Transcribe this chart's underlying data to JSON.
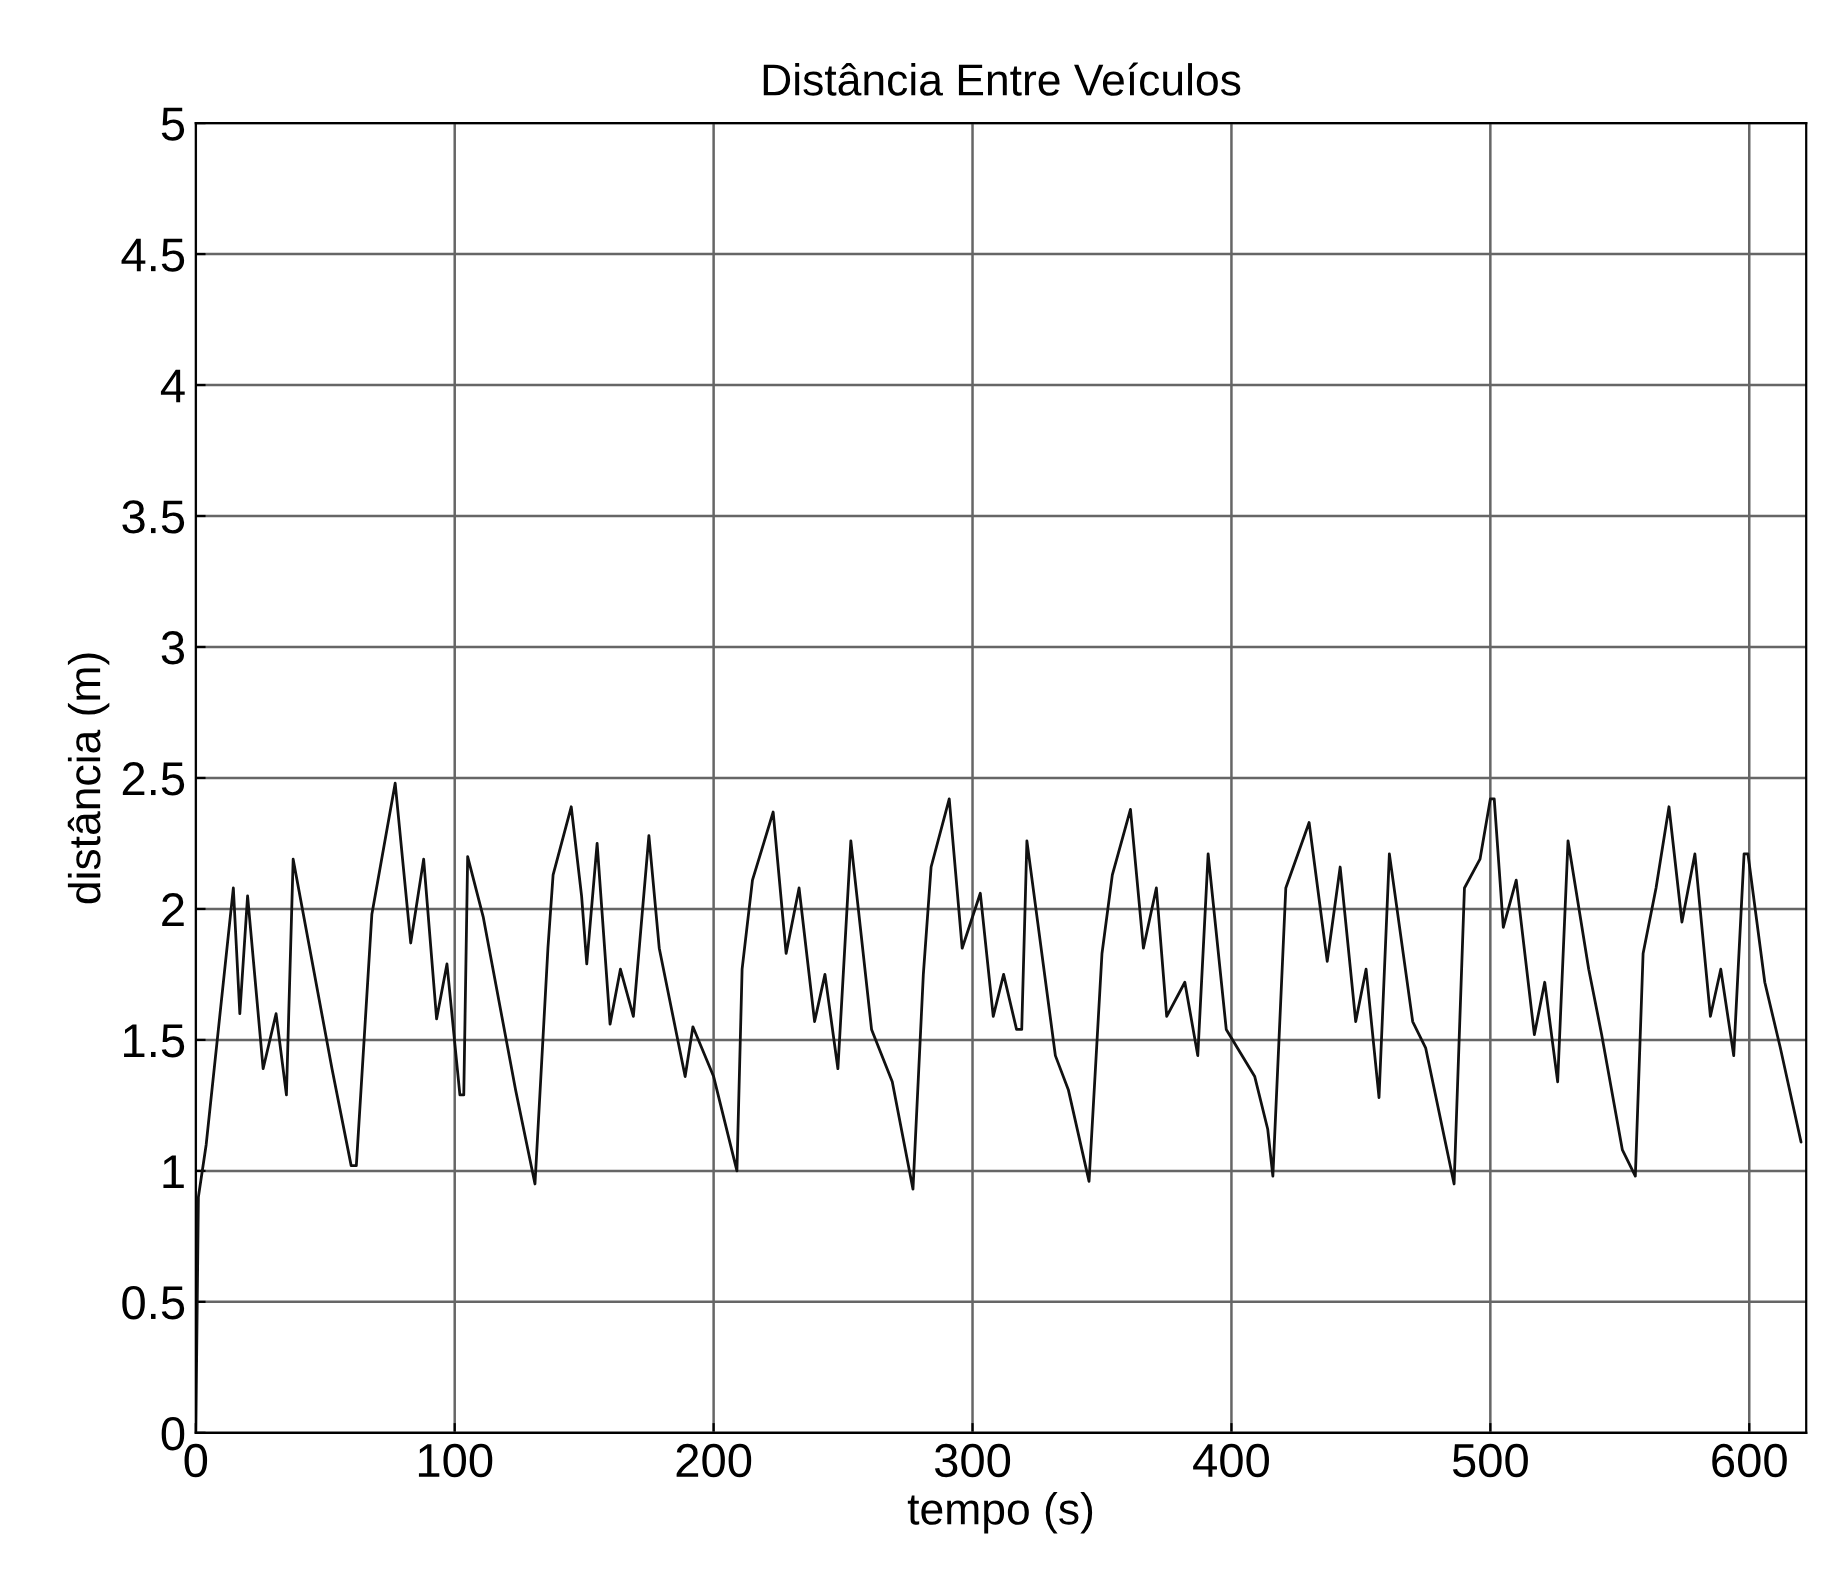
{
  "chart_data": {
    "type": "line",
    "title": "Distância Entre Veículos",
    "xlabel": "tempo (s)",
    "ylabel": "distância (m)",
    "xlim": [
      0,
      622
    ],
    "ylim": [
      0,
      5
    ],
    "xticks": [
      0,
      100,
      200,
      300,
      400,
      500,
      600
    ],
    "yticks": [
      0,
      0.5,
      1,
      1.5,
      2,
      2.5,
      3,
      3.5,
      4,
      4.5,
      5
    ],
    "grid": true,
    "series": [
      {
        "color": "#111111",
        "x": [
          0,
          1,
          4,
          14.5,
          17,
          20,
          26,
          31,
          35,
          37.6,
          52.6,
          60,
          62,
          68,
          77,
          83,
          88,
          93,
          97,
          102,
          103.5,
          105,
          111,
          123.5,
          131,
          136,
          138,
          145,
          149,
          151,
          155,
          160,
          164,
          169,
          175,
          179,
          189,
          192,
          200,
          209,
          211,
          215,
          223,
          228,
          233,
          239,
          243,
          248,
          253,
          261,
          269,
          277,
          281,
          284,
          291,
          296,
          303,
          308,
          312,
          317,
          319,
          321,
          332,
          337,
          345,
          350,
          354,
          361,
          366,
          371,
          375,
          382,
          387,
          391,
          398,
          409,
          414,
          416,
          421,
          430,
          437,
          442,
          448,
          452,
          457,
          461,
          470,
          475,
          486,
          490,
          496,
          500,
          501.5,
          505,
          510,
          517,
          521,
          526,
          530,
          538,
          543,
          551,
          556,
          559,
          564,
          569,
          574,
          579,
          585,
          589,
          594,
          598,
          599.5,
          606,
          612,
          620
        ],
        "values": [
          0,
          0.9,
          1.1,
          2.08,
          1.6,
          2.05,
          1.39,
          1.6,
          1.29,
          2.19,
          1.39,
          1.02,
          1.02,
          1.98,
          2.48,
          1.87,
          2.19,
          1.58,
          1.79,
          1.29,
          1.29,
          2.2,
          1.97,
          1.31,
          0.95,
          1.85,
          2.13,
          2.39,
          2.05,
          1.79,
          2.25,
          1.56,
          1.77,
          1.59,
          2.28,
          1.85,
          1.36,
          1.55,
          1.36,
          1.0,
          1.77,
          2.11,
          2.37,
          1.83,
          2.08,
          1.57,
          1.75,
          1.39,
          2.26,
          1.54,
          1.34,
          0.93,
          1.75,
          2.16,
          2.42,
          1.85,
          2.06,
          1.59,
          1.75,
          1.54,
          1.54,
          2.26,
          1.44,
          1.31,
          0.96,
          1.83,
          2.13,
          2.38,
          1.85,
          2.08,
          1.59,
          1.72,
          1.44,
          2.21,
          1.54,
          1.36,
          1.16,
          0.98,
          2.08,
          2.33,
          1.8,
          2.16,
          1.57,
          1.77,
          1.28,
          2.21,
          1.57,
          1.47,
          0.95,
          2.08,
          2.19,
          2.42,
          2.42,
          1.93,
          2.11,
          1.52,
          1.72,
          1.34,
          2.26,
          1.77,
          1.52,
          1.08,
          0.98,
          1.83,
          2.08,
          2.39,
          1.95,
          2.21,
          1.59,
          1.77,
          1.44,
          2.21,
          2.21,
          1.72,
          1.47,
          1.11
        ]
      }
    ]
  }
}
